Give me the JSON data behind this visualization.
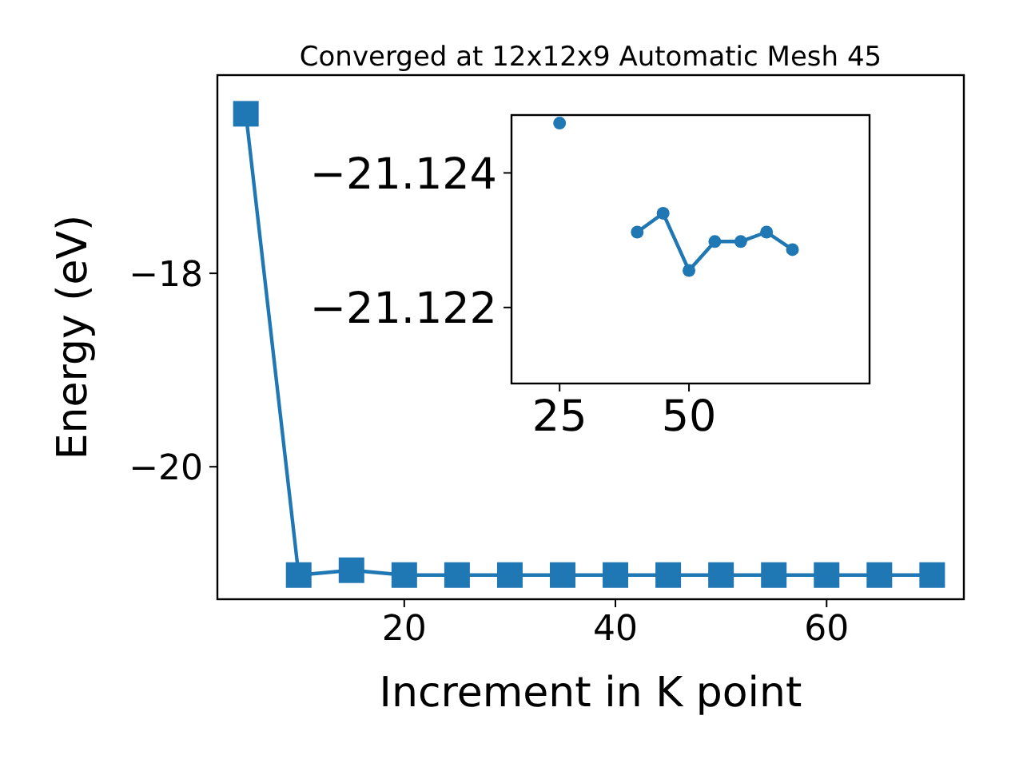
{
  "chart_data": [
    {
      "type": "line",
      "title": "Converged at 12x12x9 Automatic Mesh 45",
      "xlabel": "Increment in K point",
      "ylabel": "Energy (eV)",
      "x": [
        5,
        10,
        15,
        20,
        25,
        30,
        35,
        40,
        45,
        50,
        55,
        60,
        65,
        70
      ],
      "series": [
        {
          "color": "#1f77b4",
          "values": [
            -16.35,
            -21.12,
            -21.07,
            -21.12,
            -21.12,
            -21.12,
            -21.12,
            -21.12,
            -21.12,
            -21.12,
            -21.12,
            -21.12,
            -21.12,
            -21.12
          ]
        }
      ],
      "xlim": [
        2.3,
        73
      ],
      "ylim": [
        -21.37,
        -15.95
      ],
      "xticks": [
        20,
        40,
        60
      ],
      "yticks": [
        {
          "value": -18,
          "label": "−18"
        },
        {
          "value": -20,
          "label": "−20"
        }
      ],
      "marker": "square",
      "grid": false
    },
    {
      "type": "line",
      "x": [
        25,
        30,
        35,
        40,
        45,
        50,
        55,
        60,
        65,
        70
      ],
      "series": [
        {
          "color": "#1f77b4",
          "values": [
            -21.12474,
            null,
            null,
            -21.12312,
            -21.1234,
            -21.12255,
            -21.12298,
            -21.12298,
            -21.12312,
            -21.12286
          ]
        }
      ],
      "xlim": [
        15.7,
        84.9
      ],
      "ylim": [
        -21.12087,
        -21.12486
      ],
      "xticks": [
        25,
        50
      ],
      "yticks": [
        {
          "value": -21.124,
          "label": "−21.124"
        },
        {
          "value": -21.122,
          "label": "−21.122"
        }
      ],
      "marker": "circle",
      "grid": false
    }
  ]
}
